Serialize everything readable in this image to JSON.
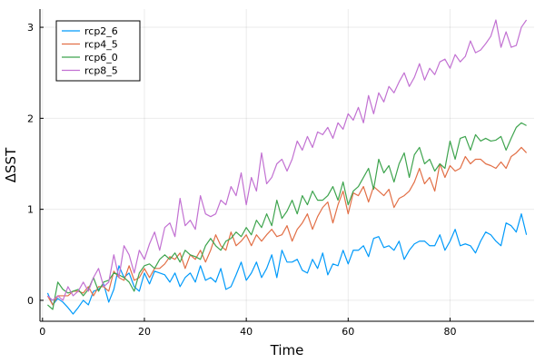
{
  "chart_data": {
    "type": "line",
    "title": "",
    "xlabel": "Time",
    "ylabel": "ΔSST",
    "xlim": [
      -0.5,
      96.5
    ],
    "ylim": [
      -0.23,
      3.2
    ],
    "xticks": [
      0,
      20,
      40,
      60,
      80
    ],
    "yticks": [
      0,
      1,
      2,
      3
    ],
    "grid": true,
    "legend_position": "top-left",
    "x_start": 1,
    "series": [
      {
        "name": "rcp2_6",
        "color": "#009AFA",
        "values": [
          0.08,
          -0.05,
          0.02,
          -0.02,
          -0.08,
          -0.15,
          -0.08,
          0.0,
          -0.05,
          0.1,
          0.12,
          0.18,
          -0.02,
          0.12,
          0.38,
          0.25,
          0.3,
          0.15,
          0.1,
          0.3,
          0.18,
          0.32,
          0.3,
          0.28,
          0.2,
          0.3,
          0.15,
          0.25,
          0.3,
          0.2,
          0.38,
          0.22,
          0.25,
          0.2,
          0.35,
          0.12,
          0.15,
          0.28,
          0.42,
          0.22,
          0.3,
          0.42,
          0.25,
          0.35,
          0.5,
          0.25,
          0.55,
          0.42,
          0.42,
          0.45,
          0.33,
          0.3,
          0.45,
          0.35,
          0.52,
          0.28,
          0.4,
          0.38,
          0.55,
          0.4,
          0.55,
          0.55,
          0.6,
          0.48,
          0.68,
          0.7,
          0.58,
          0.6,
          0.55,
          0.65,
          0.45,
          0.55,
          0.62,
          0.65,
          0.65,
          0.6,
          0.6,
          0.72,
          0.55,
          0.65,
          0.78,
          0.6,
          0.62,
          0.6,
          0.52,
          0.65,
          0.75,
          0.72,
          0.65,
          0.6,
          0.85,
          0.82,
          0.75,
          0.95,
          0.72
        ]
      },
      {
        "name": "rcp4_5",
        "color": "#E26F46",
        "values": [
          0.05,
          -0.05,
          0.05,
          0.05,
          0.05,
          0.1,
          0.1,
          0.08,
          0.15,
          0.05,
          0.15,
          0.15,
          0.1,
          0.32,
          0.25,
          0.22,
          0.38,
          0.22,
          0.25,
          0.35,
          0.25,
          0.35,
          0.35,
          0.4,
          0.48,
          0.45,
          0.52,
          0.35,
          0.5,
          0.45,
          0.55,
          0.42,
          0.55,
          0.72,
          0.6,
          0.55,
          0.75,
          0.6,
          0.65,
          0.72,
          0.6,
          0.72,
          0.65,
          0.72,
          0.78,
          0.7,
          0.72,
          0.82,
          0.65,
          0.78,
          0.85,
          0.95,
          0.78,
          0.92,
          1.02,
          1.08,
          0.85,
          1.05,
          1.2,
          0.95,
          1.18,
          1.15,
          1.25,
          1.08,
          1.25,
          1.2,
          1.15,
          1.22,
          1.02,
          1.12,
          1.15,
          1.2,
          1.3,
          1.45,
          1.28,
          1.35,
          1.2,
          1.5,
          1.35,
          1.48,
          1.42,
          1.45,
          1.58,
          1.5,
          1.55,
          1.55,
          1.5,
          1.48,
          1.45,
          1.52,
          1.45,
          1.58,
          1.62,
          1.68,
          1.62
        ]
      },
      {
        "name": "rcp6_0",
        "color": "#3EA44E",
        "values": [
          -0.05,
          -0.1,
          0.2,
          0.12,
          0.08,
          0.1,
          0.12,
          0.05,
          0.12,
          0.25,
          0.1,
          0.2,
          0.22,
          0.3,
          0.28,
          0.25,
          0.2,
          0.1,
          0.3,
          0.38,
          0.4,
          0.35,
          0.45,
          0.5,
          0.45,
          0.52,
          0.42,
          0.55,
          0.5,
          0.48,
          0.45,
          0.6,
          0.68,
          0.6,
          0.55,
          0.65,
          0.68,
          0.75,
          0.7,
          0.8,
          0.72,
          0.88,
          0.8,
          0.95,
          0.82,
          1.1,
          0.9,
          0.98,
          1.1,
          0.95,
          1.15,
          1.05,
          1.2,
          1.1,
          1.1,
          1.15,
          1.25,
          1.1,
          1.3,
          1.05,
          1.2,
          1.25,
          1.35,
          1.45,
          1.22,
          1.55,
          1.4,
          1.48,
          1.3,
          1.5,
          1.62,
          1.35,
          1.6,
          1.68,
          1.5,
          1.55,
          1.42,
          1.5,
          1.45,
          1.75,
          1.55,
          1.78,
          1.8,
          1.65,
          1.82,
          1.75,
          1.78,
          1.75,
          1.76,
          1.8,
          1.65,
          1.78,
          1.9,
          1.95,
          1.92
        ]
      },
      {
        "name": "rcp8_5",
        "color": "#C271D2",
        "values": [
          0.05,
          0.0,
          0.05,
          0.0,
          0.15,
          0.05,
          0.1,
          0.2,
          0.1,
          0.25,
          0.35,
          0.15,
          0.2,
          0.5,
          0.25,
          0.6,
          0.5,
          0.3,
          0.55,
          0.45,
          0.62,
          0.75,
          0.55,
          0.8,
          0.85,
          0.7,
          1.12,
          0.82,
          0.88,
          0.78,
          1.15,
          0.95,
          0.92,
          0.95,
          1.1,
          1.05,
          1.25,
          1.15,
          1.4,
          1.05,
          1.35,
          1.2,
          1.62,
          1.28,
          1.35,
          1.5,
          1.55,
          1.42,
          1.55,
          1.75,
          1.65,
          1.8,
          1.68,
          1.85,
          1.82,
          1.9,
          1.78,
          1.95,
          1.88,
          2.05,
          1.98,
          2.12,
          1.95,
          2.25,
          2.05,
          2.28,
          2.18,
          2.35,
          2.28,
          2.4,
          2.5,
          2.35,
          2.45,
          2.6,
          2.42,
          2.55,
          2.48,
          2.62,
          2.65,
          2.55,
          2.7,
          2.62,
          2.68,
          2.85,
          2.72,
          2.75,
          2.82,
          2.9,
          3.08,
          2.78,
          2.95,
          2.78,
          2.8,
          3.0,
          3.08
        ]
      }
    ]
  }
}
